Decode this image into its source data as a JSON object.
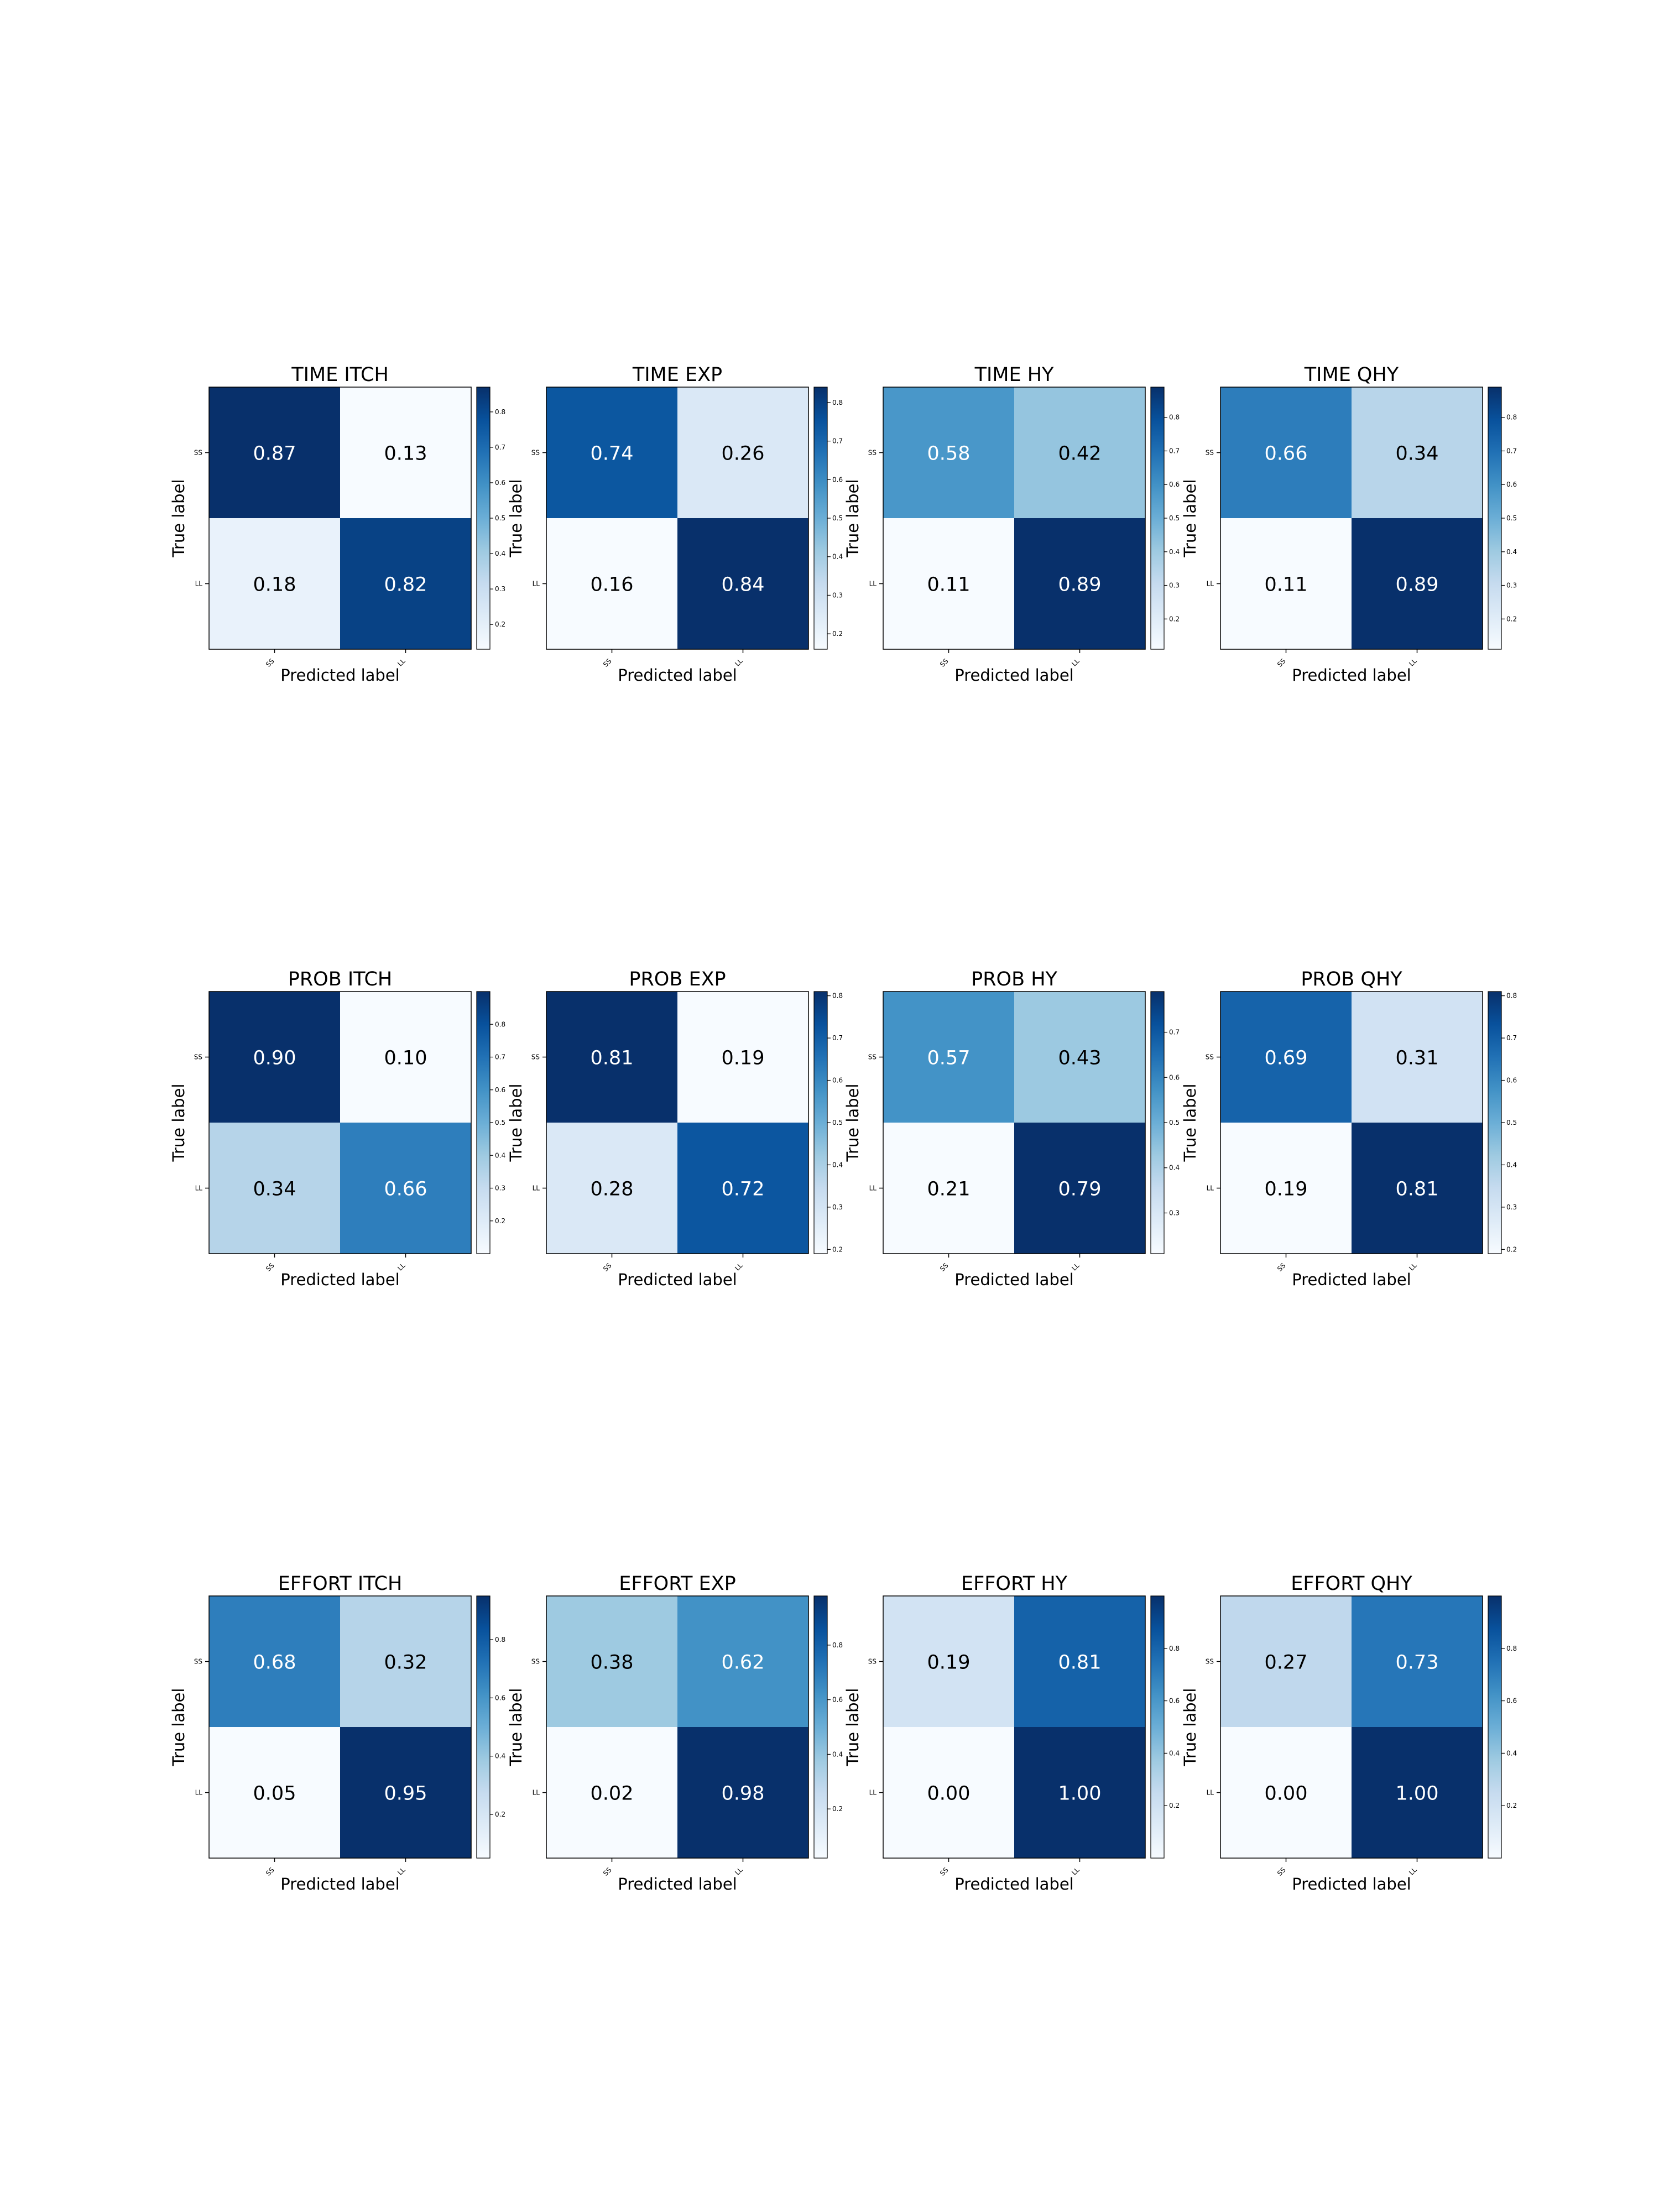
{
  "chart_data": [
    {
      "type": "heatmap",
      "title": "TIME ITCH",
      "xlabel": "Predicted label",
      "ylabel": "True label",
      "x_ticks": [
        "SS",
        "LL"
      ],
      "y_ticks": [
        "SS",
        "LL"
      ],
      "values": [
        [
          0.87,
          0.13
        ],
        [
          0.18,
          0.82
        ]
      ],
      "colorbar_ticks": [
        "0.2",
        "0.3",
        "0.4",
        "0.5",
        "0.6",
        "0.7",
        "0.8"
      ],
      "colorbar_range": [
        0.13,
        0.87
      ]
    },
    {
      "type": "heatmap",
      "title": "TIME EXP",
      "xlabel": "Predicted label",
      "ylabel": "True label",
      "x_ticks": [
        "SS",
        "LL"
      ],
      "y_ticks": [
        "SS",
        "LL"
      ],
      "values": [
        [
          0.74,
          0.26
        ],
        [
          0.16,
          0.84
        ]
      ],
      "colorbar_ticks": [
        "0.2",
        "0.3",
        "0.4",
        "0.5",
        "0.6",
        "0.7",
        "0.8"
      ],
      "colorbar_range": [
        0.16,
        0.84
      ]
    },
    {
      "type": "heatmap",
      "title": "TIME HY",
      "xlabel": "Predicted label",
      "ylabel": "True label",
      "x_ticks": [
        "SS",
        "LL"
      ],
      "y_ticks": [
        "SS",
        "LL"
      ],
      "values": [
        [
          0.58,
          0.42
        ],
        [
          0.11,
          0.89
        ]
      ],
      "colorbar_ticks": [
        "0.2",
        "0.3",
        "0.4",
        "0.5",
        "0.6",
        "0.7",
        "0.8"
      ],
      "colorbar_range": [
        0.11,
        0.89
      ]
    },
    {
      "type": "heatmap",
      "title": "TIME QHY",
      "xlabel": "Predicted label",
      "ylabel": "True label",
      "x_ticks": [
        "SS",
        "LL"
      ],
      "y_ticks": [
        "SS",
        "LL"
      ],
      "values": [
        [
          0.66,
          0.34
        ],
        [
          0.11,
          0.89
        ]
      ],
      "colorbar_ticks": [
        "0.2",
        "0.3",
        "0.4",
        "0.5",
        "0.6",
        "0.7",
        "0.8"
      ],
      "colorbar_range": [
        0.11,
        0.89
      ]
    },
    {
      "type": "heatmap",
      "title": "PROB ITCH",
      "xlabel": "Predicted label",
      "ylabel": "True label",
      "x_ticks": [
        "SS",
        "LL"
      ],
      "y_ticks": [
        "SS",
        "LL"
      ],
      "values": [
        [
          0.9,
          0.1
        ],
        [
          0.34,
          0.66
        ]
      ],
      "colorbar_ticks": [
        "0.2",
        "0.3",
        "0.4",
        "0.5",
        "0.6",
        "0.7",
        "0.8"
      ],
      "colorbar_range": [
        0.1,
        0.9
      ]
    },
    {
      "type": "heatmap",
      "title": "PROB EXP",
      "xlabel": "Predicted label",
      "ylabel": "True label",
      "x_ticks": [
        "SS",
        "LL"
      ],
      "y_ticks": [
        "SS",
        "LL"
      ],
      "values": [
        [
          0.81,
          0.19
        ],
        [
          0.28,
          0.72
        ]
      ],
      "colorbar_ticks": [
        "0.2",
        "0.3",
        "0.4",
        "0.5",
        "0.6",
        "0.7",
        "0.8"
      ],
      "colorbar_range": [
        0.19,
        0.81
      ]
    },
    {
      "type": "heatmap",
      "title": "PROB HY",
      "xlabel": "Predicted label",
      "ylabel": "True label",
      "x_ticks": [
        "SS",
        "LL"
      ],
      "y_ticks": [
        "SS",
        "LL"
      ],
      "values": [
        [
          0.57,
          0.43
        ],
        [
          0.21,
          0.79
        ]
      ],
      "colorbar_ticks": [
        "0.3",
        "0.4",
        "0.5",
        "0.6",
        "0.7"
      ],
      "colorbar_range": [
        0.21,
        0.79
      ]
    },
    {
      "type": "heatmap",
      "title": "PROB QHY",
      "xlabel": "Predicted label",
      "ylabel": "True label",
      "x_ticks": [
        "SS",
        "LL"
      ],
      "y_ticks": [
        "SS",
        "LL"
      ],
      "values": [
        [
          0.69,
          0.31
        ],
        [
          0.19,
          0.81
        ]
      ],
      "colorbar_ticks": [
        "0.2",
        "0.3",
        "0.4",
        "0.5",
        "0.6",
        "0.7",
        "0.8"
      ],
      "colorbar_range": [
        0.19,
        0.81
      ]
    },
    {
      "type": "heatmap",
      "title": "EFFORT ITCH",
      "xlabel": "Predicted label",
      "ylabel": "True label",
      "x_ticks": [
        "SS",
        "LL"
      ],
      "y_ticks": [
        "SS",
        "LL"
      ],
      "values": [
        [
          0.68,
          0.32
        ],
        [
          0.05,
          0.95
        ]
      ],
      "colorbar_ticks": [
        "0.2",
        "0.4",
        "0.6",
        "0.8"
      ],
      "colorbar_range": [
        0.05,
        0.95
      ]
    },
    {
      "type": "heatmap",
      "title": "EFFORT EXP",
      "xlabel": "Predicted label",
      "ylabel": "True label",
      "x_ticks": [
        "SS",
        "LL"
      ],
      "y_ticks": [
        "SS",
        "LL"
      ],
      "values": [
        [
          0.38,
          0.62
        ],
        [
          0.02,
          0.98
        ]
      ],
      "colorbar_ticks": [
        "0.2",
        "0.4",
        "0.6",
        "0.8"
      ],
      "colorbar_range": [
        0.02,
        0.98
      ]
    },
    {
      "type": "heatmap",
      "title": "EFFORT HY",
      "xlabel": "Predicted label",
      "ylabel": "True label",
      "x_ticks": [
        "SS",
        "LL"
      ],
      "y_ticks": [
        "SS",
        "LL"
      ],
      "values": [
        [
          0.19,
          0.81
        ],
        [
          0.0,
          1.0
        ]
      ],
      "colorbar_ticks": [
        "0.2",
        "0.4",
        "0.6",
        "0.8"
      ],
      "colorbar_range": [
        0.0,
        1.0
      ]
    },
    {
      "type": "heatmap",
      "title": "EFFORT QHY",
      "xlabel": "Predicted label",
      "ylabel": "True label",
      "x_ticks": [
        "SS",
        "LL"
      ],
      "y_ticks": [
        "SS",
        "LL"
      ],
      "values": [
        [
          0.27,
          0.73
        ],
        [
          0.0,
          1.0
        ]
      ],
      "colorbar_ticks": [
        "0.2",
        "0.4",
        "0.6",
        "0.8"
      ],
      "colorbar_range": [
        0.0,
        1.0
      ]
    }
  ]
}
